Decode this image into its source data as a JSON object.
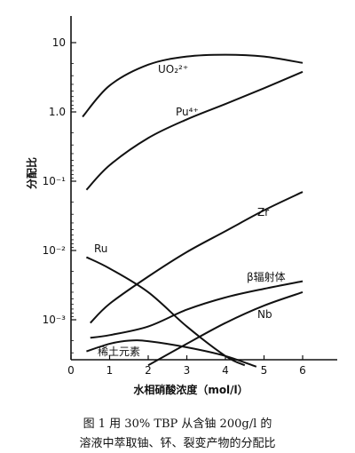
{
  "chart_data": {
    "type": "line",
    "title": "",
    "xlabel": "水相硝酸浓度（mol/l）",
    "ylabel": "分配比",
    "x_ticks": [
      "0",
      "1",
      "2",
      "3",
      "4",
      "5",
      "6"
    ],
    "y_ticks": [
      "10",
      "1.0",
      "10⁻¹",
      "10⁻²",
      "10⁻³"
    ],
    "xlim": [
      0,
      7
    ],
    "ylim": [
      0.0002,
      20
    ],
    "yscale": "log",
    "grid": false,
    "series": [
      {
        "name": "UO₂²⁺",
        "x": [
          0.3,
          1,
          2,
          3,
          4,
          5,
          6
        ],
        "y": [
          0.85,
          2.4,
          4.8,
          6.3,
          6.7,
          6.3,
          5.1
        ]
      },
      {
        "name": "Pu⁴⁺",
        "x": [
          0.4,
          1,
          2,
          3,
          4,
          5,
          6
        ],
        "y": [
          0.075,
          0.17,
          0.42,
          0.78,
          1.3,
          2.2,
          3.8
        ]
      },
      {
        "name": "Zr",
        "x": [
          0.5,
          1,
          2,
          3,
          4,
          5,
          6
        ],
        "y": [
          0.0009,
          0.0017,
          0.0042,
          0.0095,
          0.019,
          0.038,
          0.07
        ]
      },
      {
        "name": "Ru",
        "x": [
          0.4,
          1,
          2,
          3,
          4,
          4.5
        ],
        "y": [
          0.008,
          0.0055,
          0.0025,
          0.0008,
          0.0003,
          0.00022
        ]
      },
      {
        "name": "β辐射体",
        "x": [
          0.5,
          1,
          2,
          3,
          4,
          5,
          6
        ],
        "y": [
          0.00055,
          0.0006,
          0.0008,
          0.0014,
          0.0021,
          0.0028,
          0.0036
        ]
      },
      {
        "name": "Nb",
        "x": [
          2,
          3,
          4,
          5,
          6
        ],
        "y": [
          0.00022,
          0.00045,
          0.0009,
          0.0016,
          0.0025
        ]
      },
      {
        "name": "稀土元素",
        "x": [
          0.4,
          1,
          1.5,
          2,
          3,
          4,
          4.8
        ],
        "y": [
          0.00035,
          0.00045,
          0.0005,
          0.00049,
          0.0004,
          0.0003,
          0.00021
        ]
      }
    ],
    "labels": [
      "UO₂²⁺",
      "Pu⁴⁺",
      "Zr",
      "Ru",
      "β辐射体",
      "Nb",
      "稀土元素"
    ]
  },
  "caption": {
    "line1": "图 1   用 30% TBP 从含铀 200g/l 的",
    "line2": "溶液中萃取铀、钚、裂变产物的分配比"
  }
}
